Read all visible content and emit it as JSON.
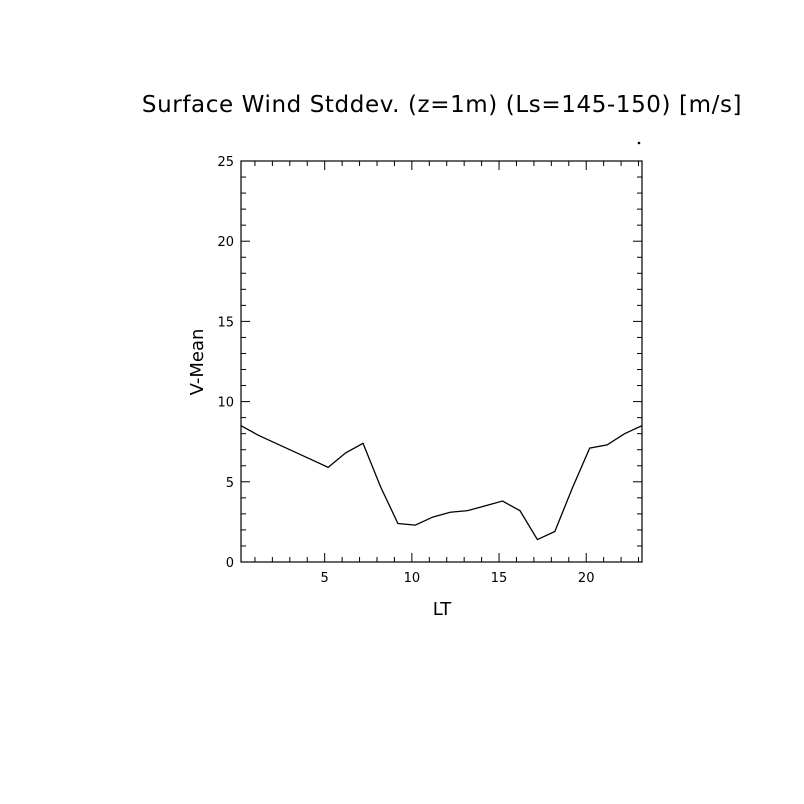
{
  "chart_data": {
    "type": "line",
    "title": "Surface Wind Stddev. (z=1m) (Ls=145-150) [m/s]",
    "xlabel": "LT",
    "ylabel": "V-Mean",
    "xlim": [
      0.2,
      23.2
    ],
    "ylim": [
      0,
      25
    ],
    "xticks": [
      5,
      10,
      15,
      20
    ],
    "yticks": [
      0,
      5,
      10,
      15,
      20,
      25
    ],
    "grid": false,
    "legend": "none",
    "colors": {
      "line": "#000000",
      "axes": "#000000",
      "background": "#ffffff"
    },
    "series": [
      {
        "x": [
          0.2,
          1.2,
          2.2,
          3.2,
          4.2,
          5.2,
          6.2,
          7.2,
          8.2,
          9.2,
          10.2,
          11.2,
          12.2,
          13.2,
          14.2,
          15.2,
          16.2,
          17.2,
          18.2,
          19.2,
          20.2,
          21.2,
          22.2,
          23.2
        ],
        "y": [
          8.5,
          7.9,
          7.4,
          6.9,
          6.4,
          5.9,
          6.8,
          7.4,
          4.7,
          2.4,
          2.3,
          2.8,
          3.1,
          3.2,
          3.5,
          3.8,
          3.2,
          1.4,
          1.9,
          4.6,
          7.1,
          7.3,
          8.0,
          8.5
        ]
      }
    ]
  }
}
